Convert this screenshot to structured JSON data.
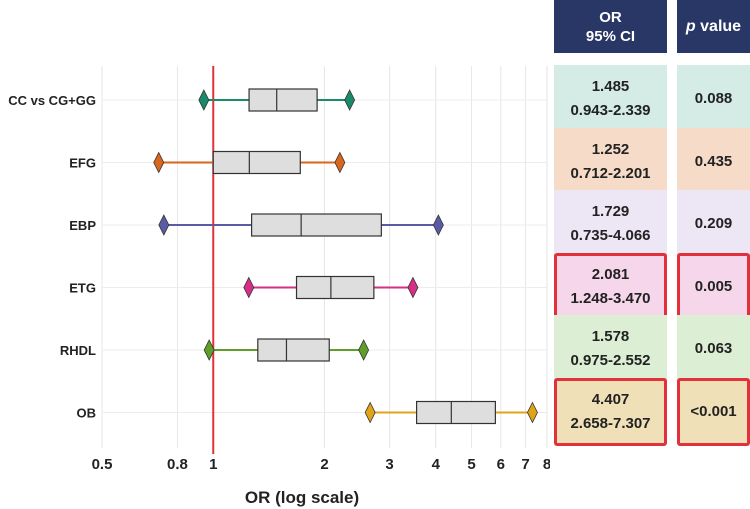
{
  "chart_data": {
    "type": "boxplot-forest",
    "xlabel": "OR (log scale)",
    "xscale": "log",
    "xlim": [
      0.5,
      8
    ],
    "xticks": [
      {
        "value": 0.5,
        "label": "0.5"
      },
      {
        "value": 0.8,
        "label": "0.8"
      },
      {
        "value": 1,
        "label": "1"
      },
      {
        "value": 2,
        "label": "2"
      },
      {
        "value": 3,
        "label": "3"
      },
      {
        "value": 4,
        "label": "4"
      },
      {
        "value": 5,
        "label": "5"
      },
      {
        "value": 6,
        "label": "6"
      },
      {
        "value": 7,
        "label": "7"
      },
      {
        "value": 8,
        "label": "8"
      }
    ],
    "reference_line": 1,
    "reference_color": "#e3313c",
    "grid": true,
    "rows": [
      {
        "label": "CC vs CG+GG",
        "or": 1.485,
        "lo": 0.943,
        "hi": 2.339,
        "q1": 1.25,
        "q3": 1.91,
        "color": "#1a8a6a",
        "fill": "#d5ece6"
      },
      {
        "label": "EFG",
        "or": 1.252,
        "lo": 0.712,
        "hi": 2.201,
        "q1": 1.0,
        "q3": 1.72,
        "color": "#d8661c",
        "fill": "#f6dcc8"
      },
      {
        "label": "EBP",
        "or": 1.729,
        "lo": 0.735,
        "hi": 4.066,
        "q1": 1.27,
        "q3": 2.85,
        "color": "#5a5ba4",
        "fill": "#ece6f5"
      },
      {
        "label": "ETG",
        "or": 2.081,
        "lo": 1.248,
        "hi": 3.47,
        "q1": 1.68,
        "q3": 2.72,
        "color": "#d62f86",
        "fill": "#f6d6ea"
      },
      {
        "label": "RHDL",
        "or": 1.578,
        "lo": 0.975,
        "hi": 2.552,
        "q1": 1.32,
        "q3": 2.06,
        "color": "#5f9e2a",
        "fill": "#dcefd5"
      },
      {
        "label": "OB",
        "or": 4.407,
        "lo": 2.658,
        "hi": 7.307,
        "q1": 3.55,
        "q3": 5.8,
        "color": "#e0a419",
        "fill": "#f0e0b8"
      }
    ]
  },
  "table": {
    "or_header_line1": "OR",
    "or_header_line2": "95% CI",
    "p_header_italic": "p",
    "p_header_rest": " value",
    "rows": [
      {
        "or": "1.485",
        "ci": "0.943-2.339",
        "p": "0.088",
        "significant": false
      },
      {
        "or": "1.252",
        "ci": "0.712-2.201",
        "p": "0.435",
        "significant": false
      },
      {
        "or": "1.729",
        "ci": "0.735-4.066",
        "p": "0.209",
        "significant": false
      },
      {
        "or": "2.081",
        "ci": "1.248-3.470",
        "p": "0.005",
        "significant": true
      },
      {
        "or": "1.578",
        "ci": "0.975-2.552",
        "p": "0.063",
        "significant": false
      },
      {
        "or": "4.407",
        "ci": "2.658-7.307",
        "p": "<0.001",
        "significant": true
      }
    ]
  }
}
